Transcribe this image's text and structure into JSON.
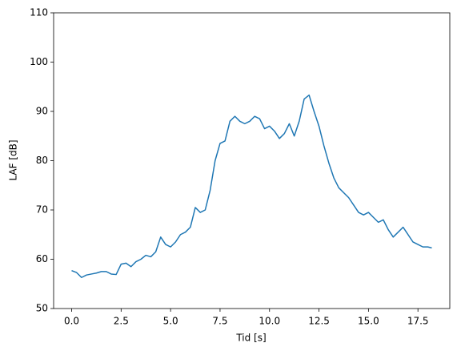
{
  "chart_data": {
    "type": "line",
    "xlabel": "Tid [s]",
    "ylabel": "LAF [dB]",
    "x": [
      0.0,
      0.25,
      0.5,
      0.75,
      1.0,
      1.25,
      1.5,
      1.75,
      2.0,
      2.25,
      2.5,
      2.75,
      3.0,
      3.25,
      3.5,
      3.75,
      4.0,
      4.25,
      4.5,
      4.75,
      5.0,
      5.25,
      5.5,
      5.75,
      6.0,
      6.25,
      6.5,
      6.75,
      7.0,
      7.25,
      7.5,
      7.75,
      8.0,
      8.25,
      8.5,
      8.75,
      9.0,
      9.25,
      9.5,
      9.75,
      10.0,
      10.25,
      10.5,
      10.75,
      11.0,
      11.25,
      11.5,
      11.75,
      12.0,
      12.25,
      12.5,
      12.75,
      13.0,
      13.25,
      13.5,
      13.75,
      14.0,
      14.25,
      14.5,
      14.75,
      15.0,
      15.25,
      15.5,
      15.75,
      16.0,
      16.25,
      16.5,
      16.75,
      17.0,
      17.25,
      17.5,
      17.75,
      18.0,
      18.2
    ],
    "series": [
      {
        "name": "LAF",
        "color": "#1f77b4",
        "values": [
          57.7,
          57.3,
          56.3,
          56.8,
          57.0,
          57.2,
          57.5,
          57.5,
          57.0,
          56.9,
          59.0,
          59.2,
          58.5,
          59.5,
          60.0,
          60.8,
          60.5,
          61.5,
          64.5,
          63.0,
          62.5,
          63.5,
          65.0,
          65.5,
          66.5,
          70.5,
          69.5,
          70.0,
          74.0,
          80.0,
          83.5,
          84.0,
          88.0,
          89.0,
          88.0,
          87.5,
          88.0,
          89.0,
          88.5,
          86.5,
          87.0,
          86.0,
          84.5,
          85.5,
          87.5,
          85.0,
          88.0,
          92.5,
          93.3,
          90.0,
          87.0,
          83.0,
          79.5,
          76.5,
          74.5,
          73.5,
          72.5,
          71.0,
          69.5,
          69.0,
          69.5,
          68.5,
          67.5,
          68.0,
          66.0,
          64.5,
          65.5,
          66.5,
          65.0,
          63.5,
          63.0,
          62.5,
          62.5,
          62.3
        ]
      }
    ],
    "xlim": [
      -0.91,
      19.11
    ],
    "xticks": [
      {
        "value": 0,
        "label": "0.0"
      },
      {
        "value": 2.5,
        "label": "2.5"
      },
      {
        "value": 5,
        "label": "5.0"
      },
      {
        "value": 7.5,
        "label": "7.5"
      },
      {
        "value": 10,
        "label": "10.0"
      },
      {
        "value": 12.5,
        "label": "12.5"
      },
      {
        "value": 15,
        "label": "15.0"
      },
      {
        "value": 17.5,
        "label": "17.5"
      }
    ],
    "ylim": [
      50,
      110
    ],
    "yticks": [
      50,
      60,
      70,
      80,
      90,
      100,
      110
    ]
  }
}
